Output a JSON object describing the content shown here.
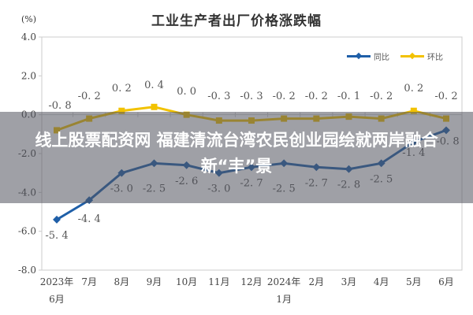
{
  "chart_data": {
    "type": "line",
    "title": "工业生产者出厂价格涨跌幅",
    "ylabel": "(%)",
    "xlabel": "",
    "ylim": [
      -8.0,
      4.0
    ],
    "yticks": [
      "4.0",
      "2.0",
      "0.0",
      "-2.0",
      "-4.0",
      "-6.0",
      "-8.0"
    ],
    "categories": [
      "2023年6月",
      "7月",
      "8月",
      "9月",
      "10月",
      "11月",
      "12月",
      "2024年1月",
      "2月",
      "3月",
      "4月",
      "5月",
      "6月"
    ],
    "series": [
      {
        "name": "同比",
        "color": "#1f5fa8",
        "values": [
          -5.4,
          -4.4,
          -3.0,
          -2.5,
          -2.6,
          -3.0,
          -2.7,
          -2.5,
          -2.7,
          -2.8,
          -2.5,
          -1.4,
          -0.8
        ]
      },
      {
        "name": "环比",
        "color": "#f2c200",
        "values": [
          -0.8,
          -0.2,
          0.2,
          0.4,
          0.0,
          -0.3,
          -0.3,
          -0.2,
          -0.2,
          -0.1,
          -0.2,
          0.2,
          -0.2
        ]
      }
    ],
    "legend_position": "top-right",
    "grid": false
  },
  "header": {
    "title": "工业生产者出厂价格涨跌幅",
    "unit": "(%)"
  },
  "legend": {
    "yoy_label": "同比",
    "mom_label": "环比"
  },
  "overlay": {
    "headline": "线上股票配资网 福建清流台湾农民创业园绘就两岸融合新“丰”景"
  }
}
